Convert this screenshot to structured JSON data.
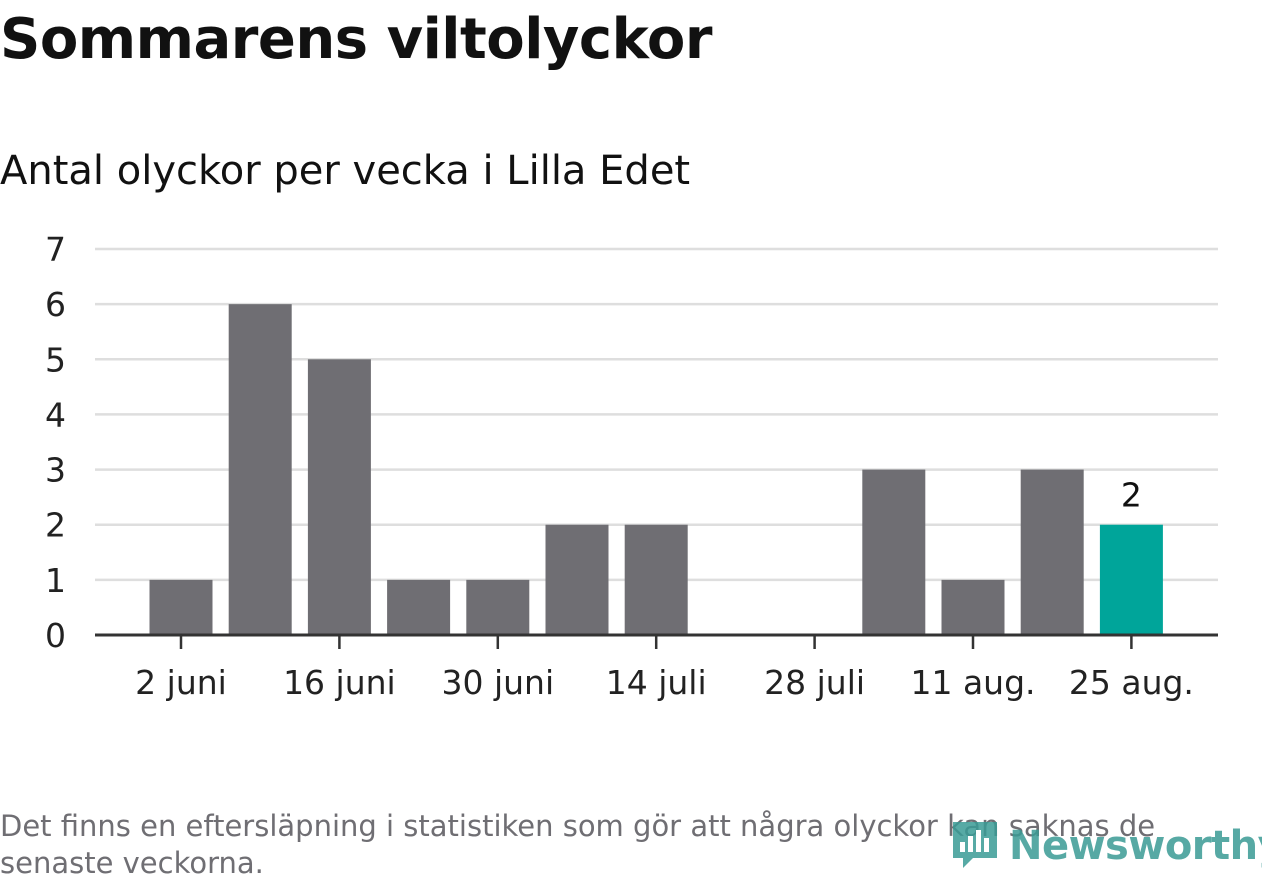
{
  "title": "Sommarens viltolyckor",
  "subtitle": "Antal olyckor per vecka i Lilla Edet",
  "footnote": "Det finns en eftersläpning i statistiken som gör att några olyckor kan saknas de senaste veckorna.",
  "brand": {
    "name": "Newsworthy",
    "logo_icon": "newsworthy-chart-bubble-icon",
    "color": "#3a9b95"
  },
  "colors": {
    "bar": "#6f6e73",
    "highlight": "#00a59a",
    "grid": "#dedede",
    "axis": "#333333"
  },
  "chart_data": {
    "type": "bar",
    "title": "Sommarens viltolyckor",
    "subtitle": "Antal olyckor per vecka i Lilla Edet",
    "xlabel": "",
    "ylabel": "",
    "x": [
      "2019-06-03",
      "2019-06-10",
      "2019-06-17",
      "2019-06-24",
      "2019-07-01",
      "2019-07-08",
      "2019-07-15",
      "2019-07-22",
      "2019-07-29",
      "2019-08-05",
      "2019-08-12",
      "2019-08-19",
      "2019-08-26"
    ],
    "values": [
      1,
      6,
      5,
      1,
      1,
      2,
      2,
      0,
      0,
      3,
      1,
      3,
      2
    ],
    "highlight_index": 12,
    "highlight_label": "2",
    "ylim": [
      0,
      7
    ],
    "y_ticks": [
      "0",
      "1",
      "2",
      "3",
      "4",
      "5",
      "6",
      "7"
    ],
    "x_ticks": [
      {
        "x": "2019-06-03",
        "label": "2 juni"
      },
      {
        "x": "2019-06-17",
        "label": "16 juni"
      },
      {
        "x": "2019-07-01",
        "label": "30 juni"
      },
      {
        "x": "2019-07-15",
        "label": "14 juli"
      },
      {
        "x": "2019-07-29",
        "label": "28 juli"
      },
      {
        "x": "2019-08-12",
        "label": "11 aug."
      },
      {
        "x": "2019-08-26",
        "label": "25 aug."
      }
    ],
    "grid": true,
    "legend": "none"
  }
}
